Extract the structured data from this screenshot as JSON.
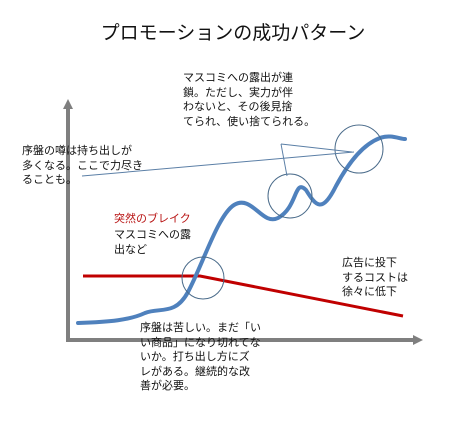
{
  "title": "プロモーションの成功パターン",
  "annotations": {
    "word_of_mouth": "序盤の噂は持ち出しが\n多くなる。ここで力尽き\nることも。",
    "break_title": "突然のブレイク",
    "break_desc": "マスコミへの露\n出など",
    "media_chain": "マスコミへの露出が連\n鎖。ただし、実力が伴\nわないと、その後見捨\nてられ、使い捨てられる。",
    "ad_cost": "広告に投下\nするコストは\n徐々に低下",
    "early_stage": "序盤は苦しい。まだ「い\nい商品」になり切れてな\nいか。打ち出し方にズ\nレがある。継続的な改\n善が必要。"
  },
  "colors": {
    "axis": "#7f7f7f",
    "popularity_curve": "#4f81bd",
    "ad_cost_line": "#c00000",
    "highlight_circle": "#4a6b8a",
    "callout_line": "#5b7fa6"
  }
}
